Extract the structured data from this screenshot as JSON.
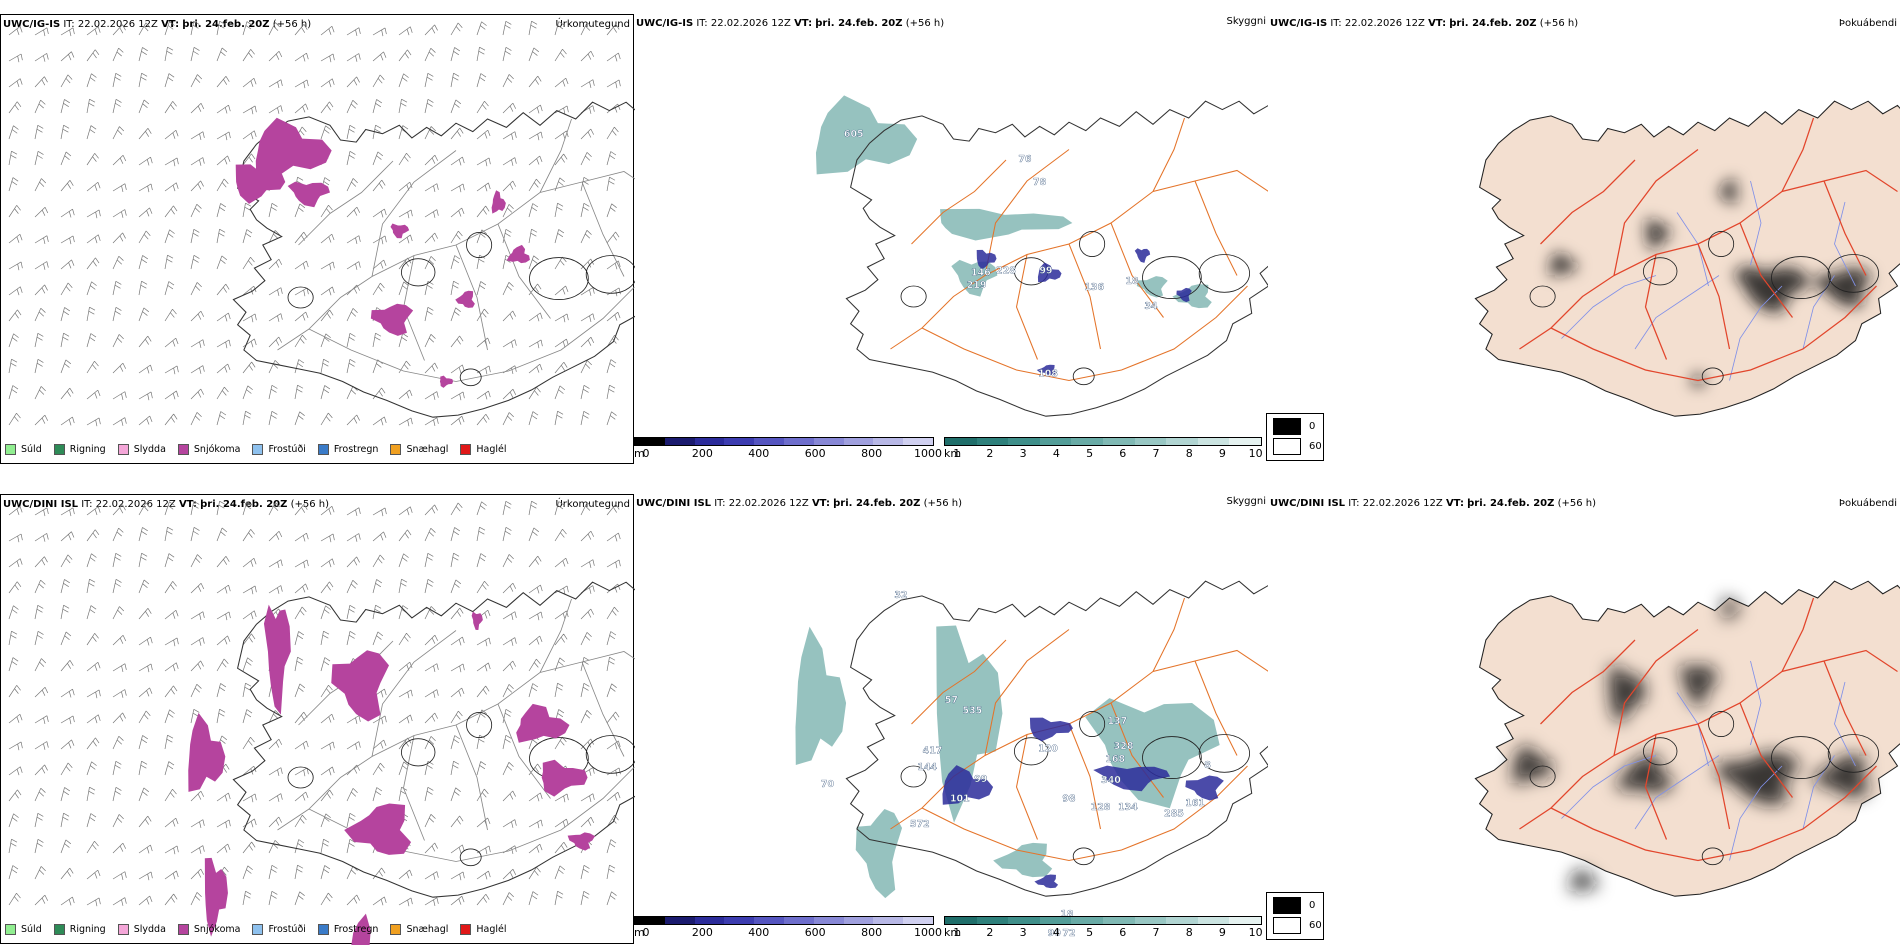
{
  "rows": [
    {
      "precip": {
        "model": "UWC/IG-IS",
        "it_label": "IT:",
        "it_value": "22.02.2026 12Z",
        "vt_label": "VT:",
        "vt_value": "þri. 24.feb. 20Z",
        "lead": "(+56 h)",
        "title_right": "Úrkomutegund"
      },
      "vis": {
        "model": "UWC/IG-IS",
        "it_label": "IT:",
        "it_value": "22.02.2026 12Z",
        "vt_label": "VT:",
        "vt_value": "þri. 24.feb. 20Z",
        "lead": "(+56 h)",
        "title_right": "Skyggni",
        "labels": [
          "605",
          "76",
          "78",
          "146",
          "228",
          "219",
          "99",
          "136",
          "18",
          "34",
          "108"
        ]
      },
      "fog": {
        "model": "UWC/IG-IS",
        "it_label": "IT:",
        "it_value": "22.02.2026 12Z",
        "vt_label": "VT:",
        "vt_value": "þri. 24.feb. 20Z",
        "lead": "(+56 h)",
        "title_right": "Þokuábendi"
      }
    },
    {
      "precip": {
        "model": "UWC/DINI ISL",
        "it_label": "IT:",
        "it_value": "22.02.2026 12Z",
        "vt_label": "VT:",
        "vt_value": "þri. 24.feb. 20Z",
        "lead": "(+56 h)",
        "title_right": "Úrkomutegund"
      },
      "vis": {
        "model": "UWC/DINI ISL",
        "it_label": "IT:",
        "it_value": "22.02.2026 12Z",
        "vt_label": "VT:",
        "vt_value": "þri. 24.feb. 20Z",
        "lead": "(+56 h)",
        "title_right": "Skyggni",
        "labels": [
          "32",
          "57",
          "535",
          "417",
          "144",
          "70",
          "99",
          "101",
          "572",
          "120",
          "137",
          "328",
          "168",
          "340",
          "98",
          "128",
          "134",
          "285",
          "161",
          "8",
          "18",
          "90",
          "72"
        ]
      },
      "fog": {
        "model": "UWC/DINI ISL",
        "it_label": "IT:",
        "it_value": "22.02.2026 12Z",
        "vt_label": "VT:",
        "vt_value": "þri. 24.feb. 20Z",
        "lead": "(+56 h)",
        "title_right": "Þokuábendi"
      }
    }
  ],
  "precip_legend": [
    {
      "label": "Súld",
      "color": "#90ee90"
    },
    {
      "label": "Rigning",
      "color": "#2e8b57"
    },
    {
      "label": "Slydda",
      "color": "#f4a6d8"
    },
    {
      "label": "Snjókoma",
      "color": "#b5449e"
    },
    {
      "label": "Frostúði",
      "color": "#8ec1ee"
    },
    {
      "label": "Frostregn",
      "color": "#3a7bc8"
    },
    {
      "label": "Snæhagl",
      "color": "#f0a020"
    },
    {
      "label": "Haglél",
      "color": "#e01818"
    }
  ],
  "ceiling_bar": {
    "unit": "m",
    "ticks": [
      "0",
      "200",
      "400",
      "600",
      "800",
      "1000"
    ],
    "colors": [
      "#000000",
      "#1a1a6e",
      "#2b2b9a",
      "#3c3cb0",
      "#5555c0",
      "#6e6ecc",
      "#8888d6",
      "#a0a0de",
      "#b8b8e6",
      "#d0d0f0"
    ]
  },
  "visibility_bar": {
    "unit": "km",
    "ticks": [
      "1",
      "2",
      "3",
      "4",
      "5",
      "6",
      "7",
      "8",
      "9",
      "10"
    ],
    "colors": [
      "#1f6e6a",
      "#2e807b",
      "#3f8f8a",
      "#539d98",
      "#69aba6",
      "#80b9b4",
      "#98c7c3",
      "#b1d5d2",
      "#cbe4e1",
      "#e5f2f0"
    ]
  },
  "fog_legend": {
    "high": "0",
    "low": "60",
    "high_color": "#000000",
    "low_color": "#ffffff"
  },
  "colors": {
    "snow": "#b5449e",
    "land_fog": "#f3dfd0",
    "road": "#e4742a",
    "road_fog": "#e2462c",
    "river": "#8090e8",
    "vis_fill": "#3f8f8a",
    "ceiling_fill": "#2b2b9a",
    "fog_dark": "#1a1a1a"
  }
}
